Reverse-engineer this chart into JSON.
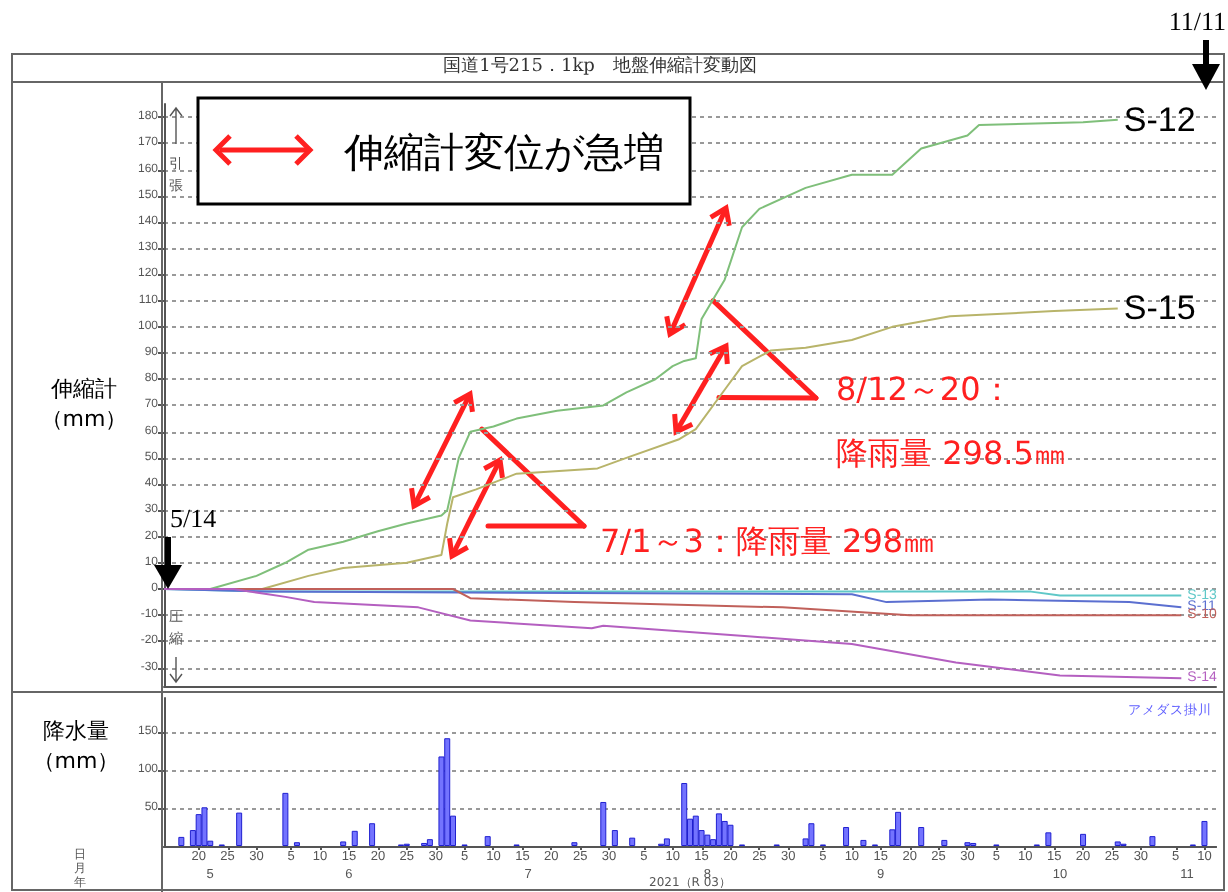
{
  "chart_data": [
    {
      "type": "line",
      "title": "国道1号215．1kp　地盤伸縮計変動図",
      "ylabel": "伸縮計（mm）",
      "xlim": [
        "2021-05-14",
        "2021-11-12"
      ],
      "ylim": [
        -37,
        185
      ],
      "yticks": [
        -30,
        -20,
        -10,
        0,
        10,
        20,
        30,
        40,
        50,
        60,
        70,
        80,
        90,
        100,
        110,
        120,
        130,
        140,
        150,
        160,
        170,
        180
      ],
      "grid": "y",
      "marker": "none",
      "line_style": "solid",
      "tick_labels": "y",
      "series": [
        {
          "name": "S-12",
          "color": "#7fbf7a",
          "x": [
            "2021-05-14",
            "2021-05-22",
            "2021-05-30",
            "2021-06-04",
            "2021-06-08",
            "2021-06-14",
            "2021-06-20",
            "2021-06-25",
            "2021-07-01",
            "2021-07-02",
            "2021-07-04",
            "2021-07-06",
            "2021-07-10",
            "2021-07-14",
            "2021-07-21",
            "2021-07-29",
            "2021-08-02",
            "2021-08-07",
            "2021-08-10",
            "2021-08-12",
            "2021-08-14",
            "2021-08-15",
            "2021-08-19",
            "2021-08-22",
            "2021-08-25",
            "2021-09-02",
            "2021-09-10",
            "2021-09-17",
            "2021-09-22",
            "2021-09-30",
            "2021-10-02",
            "2021-10-20",
            "2021-10-26"
          ],
          "values": [
            0,
            0,
            5,
            10,
            15,
            18,
            22,
            25,
            28,
            30,
            50,
            60,
            62,
            65,
            68,
            70,
            75,
            80,
            85,
            87,
            88,
            103,
            118,
            138,
            145,
            153,
            158,
            158,
            168,
            173,
            177,
            178,
            179
          ]
        },
        {
          "name": "S-15",
          "color": "#b8b46a",
          "x": [
            "2021-05-14",
            "2021-05-31",
            "2021-06-08",
            "2021-06-14",
            "2021-06-25",
            "2021-07-01",
            "2021-07-02",
            "2021-07-03",
            "2021-07-07",
            "2021-07-14",
            "2021-07-28",
            "2021-08-02",
            "2021-08-11",
            "2021-08-14",
            "2021-08-19",
            "2021-08-22",
            "2021-08-27",
            "2021-09-02",
            "2021-09-10",
            "2021-09-17",
            "2021-09-27",
            "2021-10-15",
            "2021-10-26"
          ],
          "values": [
            0,
            0,
            5,
            8,
            10,
            13,
            25,
            35,
            38,
            44,
            46,
            50,
            57,
            61,
            76,
            85,
            91,
            92,
            95,
            100,
            104,
            106,
            107
          ]
        },
        {
          "name": "S-13",
          "color": "#5fc8c8",
          "x": [
            "2021-05-14",
            "2021-06-01",
            "2021-10-11",
            "2021-10-16",
            "2021-11-06"
          ],
          "values": [
            0,
            -1,
            -1,
            -2.5,
            -2.5
          ]
        },
        {
          "name": "S-11",
          "color": "#5b6fd0",
          "x": [
            "2021-05-14",
            "2021-06-01",
            "2021-09-10",
            "2021-09-16",
            "2021-10-04",
            "2021-10-28",
            "2021-11-06"
          ],
          "values": [
            0,
            -1,
            -2,
            -5,
            -4,
            -5,
            -7
          ]
        },
        {
          "name": "S-10",
          "color": "#c0605a",
          "x": [
            "2021-05-14",
            "2021-07-03",
            "2021-07-06",
            "2021-07-24",
            "2021-08-29",
            "2021-09-20",
            "2021-11-06"
          ],
          "values": [
            0,
            0,
            -3.5,
            -5,
            -7,
            -10,
            -10
          ]
        },
        {
          "name": "S-14",
          "color": "#b45fc0",
          "x": [
            "2021-05-14",
            "2021-05-26",
            "2021-06-04",
            "2021-06-09",
            "2021-06-27",
            "2021-07-06",
            "2021-07-27",
            "2021-07-29",
            "2021-08-23",
            "2021-09-10",
            "2021-09-28",
            "2021-10-16",
            "2021-11-06"
          ],
          "values": [
            0,
            0,
            -3,
            -5,
            -7,
            -12,
            -15,
            -14,
            -18,
            -21,
            -28,
            -33,
            -34
          ]
        }
      ],
      "annotations": [
        "伸縮計変位が急増",
        {
          "text": "7/1～3：降雨量 298㎜",
          "x": "2021-07-08",
          "y": 61
        },
        {
          "text": "8/12～20：",
          "x": "2021-08-18",
          "y": 73
        },
        {
          "text": "降雨量 298.5㎜",
          "x": "2021-08-17",
          "y": 110
        },
        {
          "text": "5/14",
          "x": "2021-05-14",
          "y": 0
        },
        "11/11",
        "引張",
        "圧縮"
      ]
    },
    {
      "type": "bar",
      "ylabel": "降水量（mm）",
      "color": "#7373ff",
      "xlim": [
        "2021-05-14",
        "2021-11-12"
      ],
      "ylim": [
        0,
        195
      ],
      "yticks": [
        50,
        100,
        150
      ],
      "grid": "y",
      "x": [
        "2021-05-17",
        "2021-05-19",
        "2021-05-20",
        "2021-05-21",
        "2021-05-22",
        "2021-05-24",
        "2021-05-27",
        "2021-06-04",
        "2021-06-06",
        "2021-06-14",
        "2021-06-16",
        "2021-06-19",
        "2021-06-24",
        "2021-06-25",
        "2021-06-28",
        "2021-06-29",
        "2021-07-01",
        "2021-07-02",
        "2021-07-03",
        "2021-07-05",
        "2021-07-09",
        "2021-07-14",
        "2021-07-24",
        "2021-07-29",
        "2021-07-31",
        "2021-08-03",
        "2021-08-08",
        "2021-08-09",
        "2021-08-12",
        "2021-08-13",
        "2021-08-14",
        "2021-08-15",
        "2021-08-16",
        "2021-08-17",
        "2021-08-18",
        "2021-08-19",
        "2021-08-20",
        "2021-08-22",
        "2021-08-28",
        "2021-09-02",
        "2021-09-03",
        "2021-09-05",
        "2021-09-09",
        "2021-09-12",
        "2021-09-14",
        "2021-09-17",
        "2021-09-18",
        "2021-09-22",
        "2021-09-26",
        "2021-09-30",
        "2021-10-01",
        "2021-10-05",
        "2021-10-12",
        "2021-10-14",
        "2021-10-20",
        "2021-10-26",
        "2021-10-27",
        "2021-11-01",
        "2021-11-08",
        "2021-11-10"
      ],
      "values": [
        12,
        21,
        42,
        51,
        7,
        2,
        44,
        70,
        5,
        6,
        20,
        30,
        2,
        3,
        4,
        9,
        118,
        142,
        40,
        2,
        13,
        2,
        5,
        58,
        21,
        11,
        3,
        10,
        83,
        36,
        40,
        21,
        15,
        9,
        43,
        33,
        28,
        2,
        2,
        10,
        30,
        2,
        25,
        8,
        2,
        22,
        45,
        25,
        8,
        5,
        4,
        2,
        2,
        18,
        16,
        6,
        3,
        13,
        2,
        33
      ],
      "xticks": [
        {
          "value": "2021-05-20",
          "label": "20"
        },
        {
          "value": "2021-05-25",
          "label": "25"
        },
        {
          "value": "2021-05-30",
          "label": "30"
        },
        {
          "value": "2021-06-05",
          "label": "5"
        },
        {
          "value": "2021-06-10",
          "label": "10"
        },
        {
          "value": "2021-06-15",
          "label": "15"
        },
        {
          "value": "2021-06-20",
          "label": "20"
        },
        {
          "value": "2021-06-25",
          "label": "25"
        },
        {
          "value": "2021-06-30",
          "label": "30"
        },
        {
          "value": "2021-07-05",
          "label": "5"
        },
        {
          "value": "2021-07-10",
          "label": "10"
        },
        {
          "value": "2021-07-15",
          "label": "15"
        },
        {
          "value": "2021-07-20",
          "label": "20"
        },
        {
          "value": "2021-07-25",
          "label": "25"
        },
        {
          "value": "2021-07-30",
          "label": "30"
        },
        {
          "value": "2021-08-05",
          "label": "5"
        },
        {
          "value": "2021-08-10",
          "label": "10"
        },
        {
          "value": "2021-08-15",
          "label": "15"
        },
        {
          "value": "2021-08-20",
          "label": "20"
        },
        {
          "value": "2021-08-25",
          "label": "25"
        },
        {
          "value": "2021-08-30",
          "label": "30"
        },
        {
          "value": "2021-09-05",
          "label": "5"
        },
        {
          "value": "2021-09-10",
          "label": "10"
        },
        {
          "value": "2021-09-15",
          "label": "15"
        },
        {
          "value": "2021-09-20",
          "label": "20"
        },
        {
          "value": "2021-09-25",
          "label": "25"
        },
        {
          "value": "2021-09-30",
          "label": "30"
        },
        {
          "value": "2021-10-05",
          "label": "5"
        },
        {
          "value": "2021-10-10",
          "label": "10"
        },
        {
          "value": "2021-10-15",
          "label": "15"
        },
        {
          "value": "2021-10-20",
          "label": "20"
        },
        {
          "value": "2021-10-25",
          "label": "25"
        },
        {
          "value": "2021-10-30",
          "label": "30"
        },
        {
          "value": "2021-11-05",
          "label": "5"
        },
        {
          "value": "2021-11-10",
          "label": "10"
        }
      ],
      "x2lim": [
        "2021-05-14",
        "2021-11-12"
      ],
      "x2ticks": [
        {
          "value": "2021-05-22",
          "label": "5"
        },
        {
          "value": "2021-06-15",
          "label": "6"
        },
        {
          "value": "2021-07-16",
          "label": "7"
        },
        {
          "value": "2021-08-16",
          "label": "8"
        },
        {
          "value": "2021-09-15",
          "label": "9"
        },
        {
          "value": "2021-10-16",
          "label": "10"
        },
        {
          "value": "2021-11-07",
          "label": "11"
        }
      ],
      "annotations": [
        "アメダス掛川",
        "日",
        "月",
        "年",
        "2021（R 03）"
      ]
    }
  ]
}
